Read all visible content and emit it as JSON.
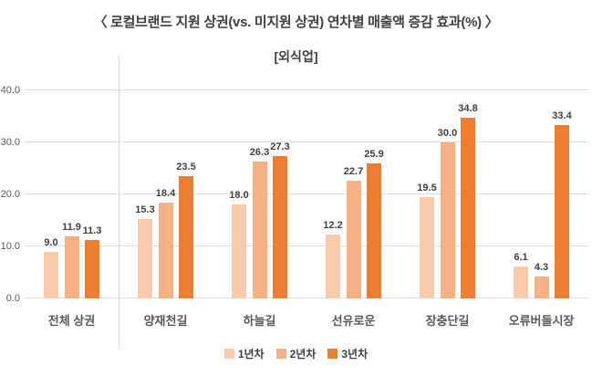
{
  "title": "〈 로컬브랜드 지원 상권(vs. 미지원 상권) 연차별 매출액 증감 효과(%) 〉",
  "subtitle": "[외식업]",
  "chart_data": {
    "type": "bar",
    "categories": [
      "전체 상권",
      "양재천길",
      "하늘길",
      "선유로운",
      "장충단길",
      "오류버들시장"
    ],
    "series": [
      {
        "name": "1년차",
        "color": "#F8CBAD",
        "values": [
          9.0,
          15.3,
          18.0,
          12.2,
          19.5,
          6.1
        ]
      },
      {
        "name": "2년차",
        "color": "#F4B183",
        "values": [
          11.9,
          18.4,
          26.3,
          22.7,
          30.0,
          4.3
        ]
      },
      {
        "name": "3년차",
        "color": "#ED7D31",
        "values": [
          11.3,
          23.5,
          27.3,
          25.9,
          34.8,
          33.4
        ]
      }
    ],
    "y_ticks": [
      "0.0",
      "10.0",
      "20.0",
      "30.0",
      "40.0"
    ],
    "ylim": [
      0,
      40
    ],
    "grid": "horizontal",
    "legend_position": "bottom",
    "separator_after_index": 0,
    "colors": {
      "gridline": "#dedede",
      "separator": "#d9d9d9",
      "title_text": "#3f3f3f",
      "axis_text": "#595959",
      "value_label_text": "#404040"
    }
  }
}
